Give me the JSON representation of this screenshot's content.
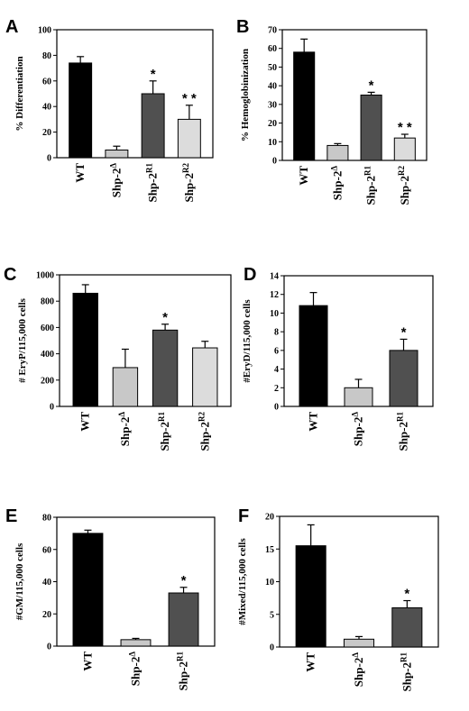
{
  "colors": {
    "WT": "#000000",
    "Shp-2Δ": "#c8c8c8",
    "Shp-2R1": "#505050",
    "Shp-2R2": "#dcdcdc"
  },
  "chart_data": [
    {
      "type": "bar",
      "panel": "A",
      "ylabel": "% Differentiation",
      "ylim": [
        0,
        100
      ],
      "yticks": [
        0,
        20,
        40,
        60,
        80,
        100
      ],
      "categories": [
        {
          "base": "WT",
          "sup": ""
        },
        {
          "base": "Shp-2",
          "sup": "Δ"
        },
        {
          "base": "Shp-2",
          "sup": "R1"
        },
        {
          "base": "Shp-2",
          "sup": "R2"
        }
      ],
      "values": [
        74,
        6,
        50,
        30
      ],
      "errors": [
        5,
        3,
        10,
        11
      ],
      "significance": [
        "",
        "",
        "*",
        "* *"
      ]
    },
    {
      "type": "bar",
      "panel": "B",
      "ylabel": "% Hemoglobinization",
      "ylim": [
        0,
        70
      ],
      "yticks": [
        0,
        10,
        20,
        30,
        40,
        50,
        60,
        70
      ],
      "categories": [
        {
          "base": "WT",
          "sup": ""
        },
        {
          "base": "Shp-2",
          "sup": "Δ"
        },
        {
          "base": "Shp-2",
          "sup": "R1"
        },
        {
          "base": "Shp-2",
          "sup": "R2"
        }
      ],
      "values": [
        58,
        8,
        35,
        12
      ],
      "errors": [
        7,
        1,
        1.5,
        2
      ],
      "significance": [
        "",
        "",
        "*",
        "* *"
      ]
    },
    {
      "type": "bar",
      "panel": "C",
      "ylabel": "# EryP/115,000 cells",
      "ylim": [
        0,
        1000
      ],
      "yticks": [
        0,
        200,
        400,
        600,
        800,
        1000
      ],
      "categories": [
        {
          "base": "WT",
          "sup": ""
        },
        {
          "base": "Shp-2",
          "sup": "Δ"
        },
        {
          "base": "Shp-2",
          "sup": "R1"
        },
        {
          "base": "Shp-2",
          "sup": "R2"
        }
      ],
      "values": [
        860,
        295,
        580,
        445
      ],
      "errors": [
        65,
        140,
        45,
        50
      ],
      "significance": [
        "",
        "",
        "*",
        ""
      ]
    },
    {
      "type": "bar",
      "panel": "D",
      "ylabel": "#EryD/115,000 cells",
      "ylim": [
        0,
        14
      ],
      "yticks": [
        0,
        2,
        4,
        6,
        8,
        10,
        12,
        14
      ],
      "categories": [
        {
          "base": "WT",
          "sup": ""
        },
        {
          "base": "Shp-2",
          "sup": "Δ"
        },
        {
          "base": "Shp-2",
          "sup": "R1"
        }
      ],
      "values": [
        10.8,
        2.0,
        6.0
      ],
      "errors": [
        1.4,
        0.9,
        1.2
      ],
      "significance": [
        "",
        "",
        "*"
      ]
    },
    {
      "type": "bar",
      "panel": "E",
      "ylabel": "#GM/115,000 cells",
      "ylim": [
        0,
        80
      ],
      "yticks": [
        0,
        20,
        40,
        60,
        80
      ],
      "categories": [
        {
          "base": "WT",
          "sup": ""
        },
        {
          "base": "Shp-2",
          "sup": "Δ"
        },
        {
          "base": "Shp-2",
          "sup": "R1"
        }
      ],
      "values": [
        70,
        4,
        33
      ],
      "errors": [
        2,
        0.8,
        3.5
      ],
      "significance": [
        "",
        "",
        "*"
      ]
    },
    {
      "type": "bar",
      "panel": "F",
      "ylabel": "#Mixed/115,000 cells",
      "ylim": [
        0,
        20
      ],
      "yticks": [
        0,
        5,
        10,
        15,
        20
      ],
      "categories": [
        {
          "base": "WT",
          "sup": ""
        },
        {
          "base": "Shp-2",
          "sup": "Δ"
        },
        {
          "base": "Shp-2",
          "sup": "R1"
        }
      ],
      "values": [
        15.5,
        1.2,
        6.0
      ],
      "errors": [
        3.2,
        0.4,
        1.1
      ],
      "significance": [
        "",
        "",
        "*"
      ]
    }
  ]
}
